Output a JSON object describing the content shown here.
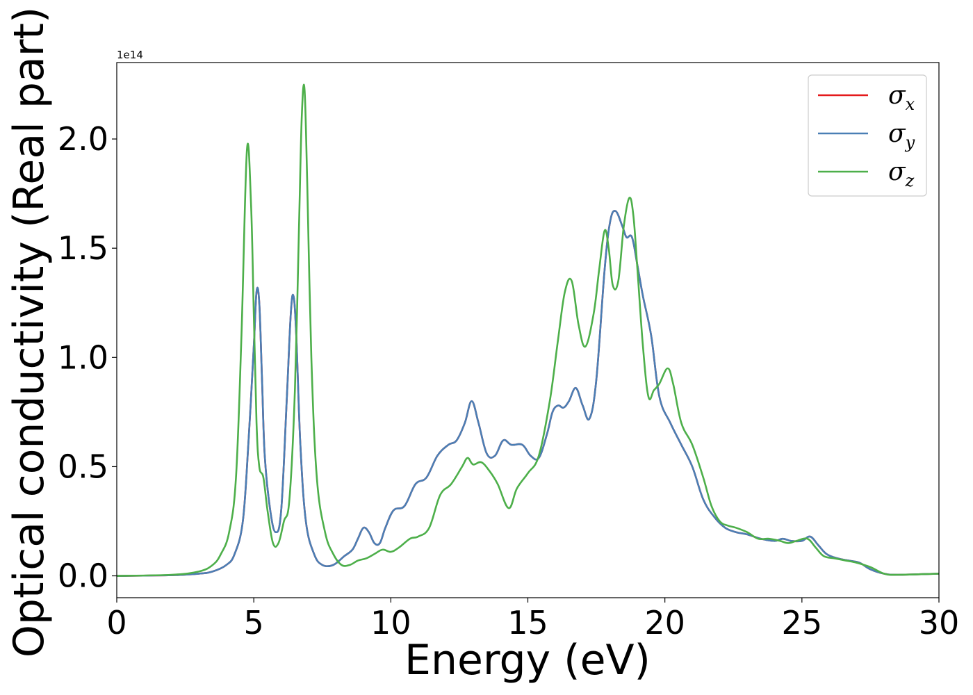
{
  "chart_data": {
    "type": "line",
    "xlabel": "Energy (eV)",
    "ylabel": "Optical conductivity (Real part)",
    "y_offset_label": "1e14",
    "xlim": [
      0,
      30
    ],
    "ylim": [
      -0.1,
      2.35
    ],
    "xticks": [
      0,
      5,
      10,
      15,
      20,
      25,
      30
    ],
    "xtick_labels": [
      "0",
      "5",
      "10",
      "15",
      "20",
      "25",
      "30"
    ],
    "yticks": [
      0.0,
      0.5,
      1.0,
      1.5,
      2.0
    ],
    "ytick_labels": [
      "0.0",
      "0.5",
      "1.0",
      "1.5",
      "2.0"
    ],
    "grid": false,
    "legend_position": "top-right",
    "series": [
      {
        "name": "σx",
        "symbol": "σ",
        "subscript": "x",
        "color": "#e41a1c",
        "x": [
          0,
          2,
          3,
          3.5,
          4,
          4.3,
          4.6,
          4.8,
          5.0,
          5.1,
          5.2,
          5.3,
          5.4,
          5.6,
          5.8,
          6.0,
          6.2,
          6.35,
          6.45,
          6.55,
          6.7,
          6.9,
          7.2,
          7.5,
          7.9,
          8.3,
          8.6,
          8.8,
          9.0,
          9.2,
          9.4,
          9.6,
          9.8,
          10.1,
          10.5,
          10.9,
          11.3,
          11.7,
          12.1,
          12.4,
          12.7,
          12.95,
          13.2,
          13.5,
          13.8,
          14.1,
          14.4,
          14.8,
          15.1,
          15.4,
          15.7,
          15.9,
          16.1,
          16.3,
          16.5,
          16.75,
          17.0,
          17.25,
          17.5,
          17.8,
          18.0,
          18.2,
          18.45,
          18.6,
          18.8,
          19.0,
          19.2,
          19.5,
          19.8,
          20.2,
          20.6,
          21.0,
          21.4,
          21.8,
          22.2,
          22.6,
          23.0,
          23.5,
          24.0,
          24.3,
          24.6,
          25.0,
          25.3,
          25.6,
          25.9,
          26.3,
          26.7,
          27.1,
          27.5,
          28.0,
          28.5,
          30
        ],
        "values": [
          0.0,
          0.003,
          0.01,
          0.02,
          0.05,
          0.1,
          0.25,
          0.6,
          1.05,
          1.3,
          1.25,
          0.9,
          0.55,
          0.3,
          0.2,
          0.3,
          0.8,
          1.2,
          1.28,
          1.1,
          0.6,
          0.25,
          0.1,
          0.05,
          0.05,
          0.09,
          0.12,
          0.17,
          0.22,
          0.2,
          0.15,
          0.15,
          0.22,
          0.3,
          0.32,
          0.42,
          0.45,
          0.55,
          0.6,
          0.62,
          0.7,
          0.8,
          0.7,
          0.56,
          0.55,
          0.62,
          0.6,
          0.6,
          0.55,
          0.54,
          0.65,
          0.75,
          0.78,
          0.77,
          0.8,
          0.86,
          0.78,
          0.72,
          0.9,
          1.4,
          1.62,
          1.67,
          1.6,
          1.55,
          1.55,
          1.42,
          1.28,
          1.1,
          0.82,
          0.7,
          0.6,
          0.5,
          0.35,
          0.27,
          0.22,
          0.2,
          0.19,
          0.17,
          0.16,
          0.17,
          0.16,
          0.16,
          0.18,
          0.14,
          0.1,
          0.08,
          0.07,
          0.06,
          0.03,
          0.01,
          0.005,
          0.01
        ]
      },
      {
        "name": "σy",
        "symbol": "σ",
        "subscript": "y",
        "color": "#4a7fb5",
        "x": [
          0,
          2,
          3,
          3.5,
          4,
          4.3,
          4.6,
          4.8,
          5.0,
          5.1,
          5.2,
          5.3,
          5.4,
          5.6,
          5.8,
          6.0,
          6.2,
          6.35,
          6.45,
          6.55,
          6.7,
          6.9,
          7.2,
          7.5,
          7.9,
          8.3,
          8.6,
          8.8,
          9.0,
          9.2,
          9.4,
          9.6,
          9.8,
          10.1,
          10.5,
          10.9,
          11.3,
          11.7,
          12.1,
          12.4,
          12.7,
          12.95,
          13.2,
          13.5,
          13.8,
          14.1,
          14.4,
          14.8,
          15.1,
          15.4,
          15.7,
          15.9,
          16.1,
          16.3,
          16.5,
          16.75,
          17.0,
          17.25,
          17.5,
          17.8,
          18.0,
          18.2,
          18.45,
          18.6,
          18.8,
          19.0,
          19.2,
          19.5,
          19.8,
          20.2,
          20.6,
          21.0,
          21.4,
          21.8,
          22.2,
          22.6,
          23.0,
          23.5,
          24.0,
          24.3,
          24.6,
          25.0,
          25.3,
          25.6,
          25.9,
          26.3,
          26.7,
          27.1,
          27.5,
          28.0,
          28.5,
          30
        ],
        "values": [
          0.0,
          0.003,
          0.01,
          0.02,
          0.05,
          0.1,
          0.25,
          0.6,
          1.05,
          1.3,
          1.25,
          0.9,
          0.55,
          0.3,
          0.2,
          0.3,
          0.8,
          1.2,
          1.28,
          1.1,
          0.6,
          0.25,
          0.1,
          0.05,
          0.05,
          0.09,
          0.12,
          0.17,
          0.22,
          0.2,
          0.15,
          0.15,
          0.22,
          0.3,
          0.32,
          0.42,
          0.45,
          0.55,
          0.6,
          0.62,
          0.7,
          0.8,
          0.7,
          0.56,
          0.55,
          0.62,
          0.6,
          0.6,
          0.55,
          0.54,
          0.65,
          0.75,
          0.78,
          0.77,
          0.8,
          0.86,
          0.78,
          0.72,
          0.9,
          1.4,
          1.62,
          1.67,
          1.6,
          1.55,
          1.55,
          1.42,
          1.28,
          1.1,
          0.82,
          0.7,
          0.6,
          0.5,
          0.35,
          0.27,
          0.22,
          0.2,
          0.19,
          0.17,
          0.16,
          0.17,
          0.16,
          0.16,
          0.18,
          0.14,
          0.1,
          0.08,
          0.07,
          0.06,
          0.03,
          0.01,
          0.005,
          0.01
        ]
      },
      {
        "name": "σz",
        "symbol": "σ",
        "subscript": "z",
        "color": "#4daf4a",
        "x": [
          0,
          2,
          3,
          3.5,
          3.8,
          4.1,
          4.35,
          4.55,
          4.75,
          4.9,
          5.0,
          5.1,
          5.2,
          5.35,
          5.5,
          5.7,
          5.9,
          6.1,
          6.3,
          6.5,
          6.65,
          6.75,
          6.85,
          6.95,
          7.1,
          7.3,
          7.6,
          7.9,
          8.2,
          8.5,
          8.8,
          9.1,
          9.4,
          9.7,
          10.0,
          10.3,
          10.7,
          11.0,
          11.4,
          11.8,
          12.2,
          12.6,
          12.8,
          13.0,
          13.3,
          13.6,
          13.9,
          14.3,
          14.6,
          15.0,
          15.4,
          15.8,
          16.1,
          16.35,
          16.6,
          16.85,
          17.1,
          17.4,
          17.6,
          17.8,
          17.95,
          18.1,
          18.3,
          18.5,
          18.7,
          18.85,
          19.0,
          19.2,
          19.4,
          19.6,
          19.8,
          20.1,
          20.3,
          20.6,
          21.0,
          21.4,
          21.7,
          22.0,
          22.3,
          22.6,
          23.0,
          23.4,
          23.8,
          24.2,
          24.5,
          24.8,
          25.2,
          25.5,
          25.8,
          26.2,
          26.6,
          27.0,
          27.5,
          28.0,
          28.5,
          30
        ],
        "values": [
          0.0,
          0.005,
          0.02,
          0.05,
          0.1,
          0.2,
          0.45,
          1.1,
          1.95,
          1.7,
          1.2,
          0.7,
          0.5,
          0.45,
          0.3,
          0.15,
          0.15,
          0.25,
          0.35,
          0.85,
          1.6,
          2.1,
          2.23,
          1.8,
          1.0,
          0.45,
          0.2,
          0.1,
          0.05,
          0.05,
          0.07,
          0.08,
          0.1,
          0.12,
          0.11,
          0.13,
          0.17,
          0.18,
          0.22,
          0.37,
          0.42,
          0.5,
          0.54,
          0.51,
          0.52,
          0.48,
          0.42,
          0.31,
          0.4,
          0.47,
          0.55,
          0.8,
          1.08,
          1.3,
          1.35,
          1.15,
          1.05,
          1.2,
          1.4,
          1.58,
          1.5,
          1.33,
          1.35,
          1.6,
          1.73,
          1.65,
          1.4,
          1.05,
          0.82,
          0.85,
          0.88,
          0.95,
          0.88,
          0.7,
          0.6,
          0.45,
          0.32,
          0.25,
          0.23,
          0.22,
          0.2,
          0.17,
          0.17,
          0.16,
          0.15,
          0.16,
          0.17,
          0.13,
          0.09,
          0.08,
          0.07,
          0.06,
          0.04,
          0.01,
          0.005,
          0.01
        ]
      }
    ]
  }
}
